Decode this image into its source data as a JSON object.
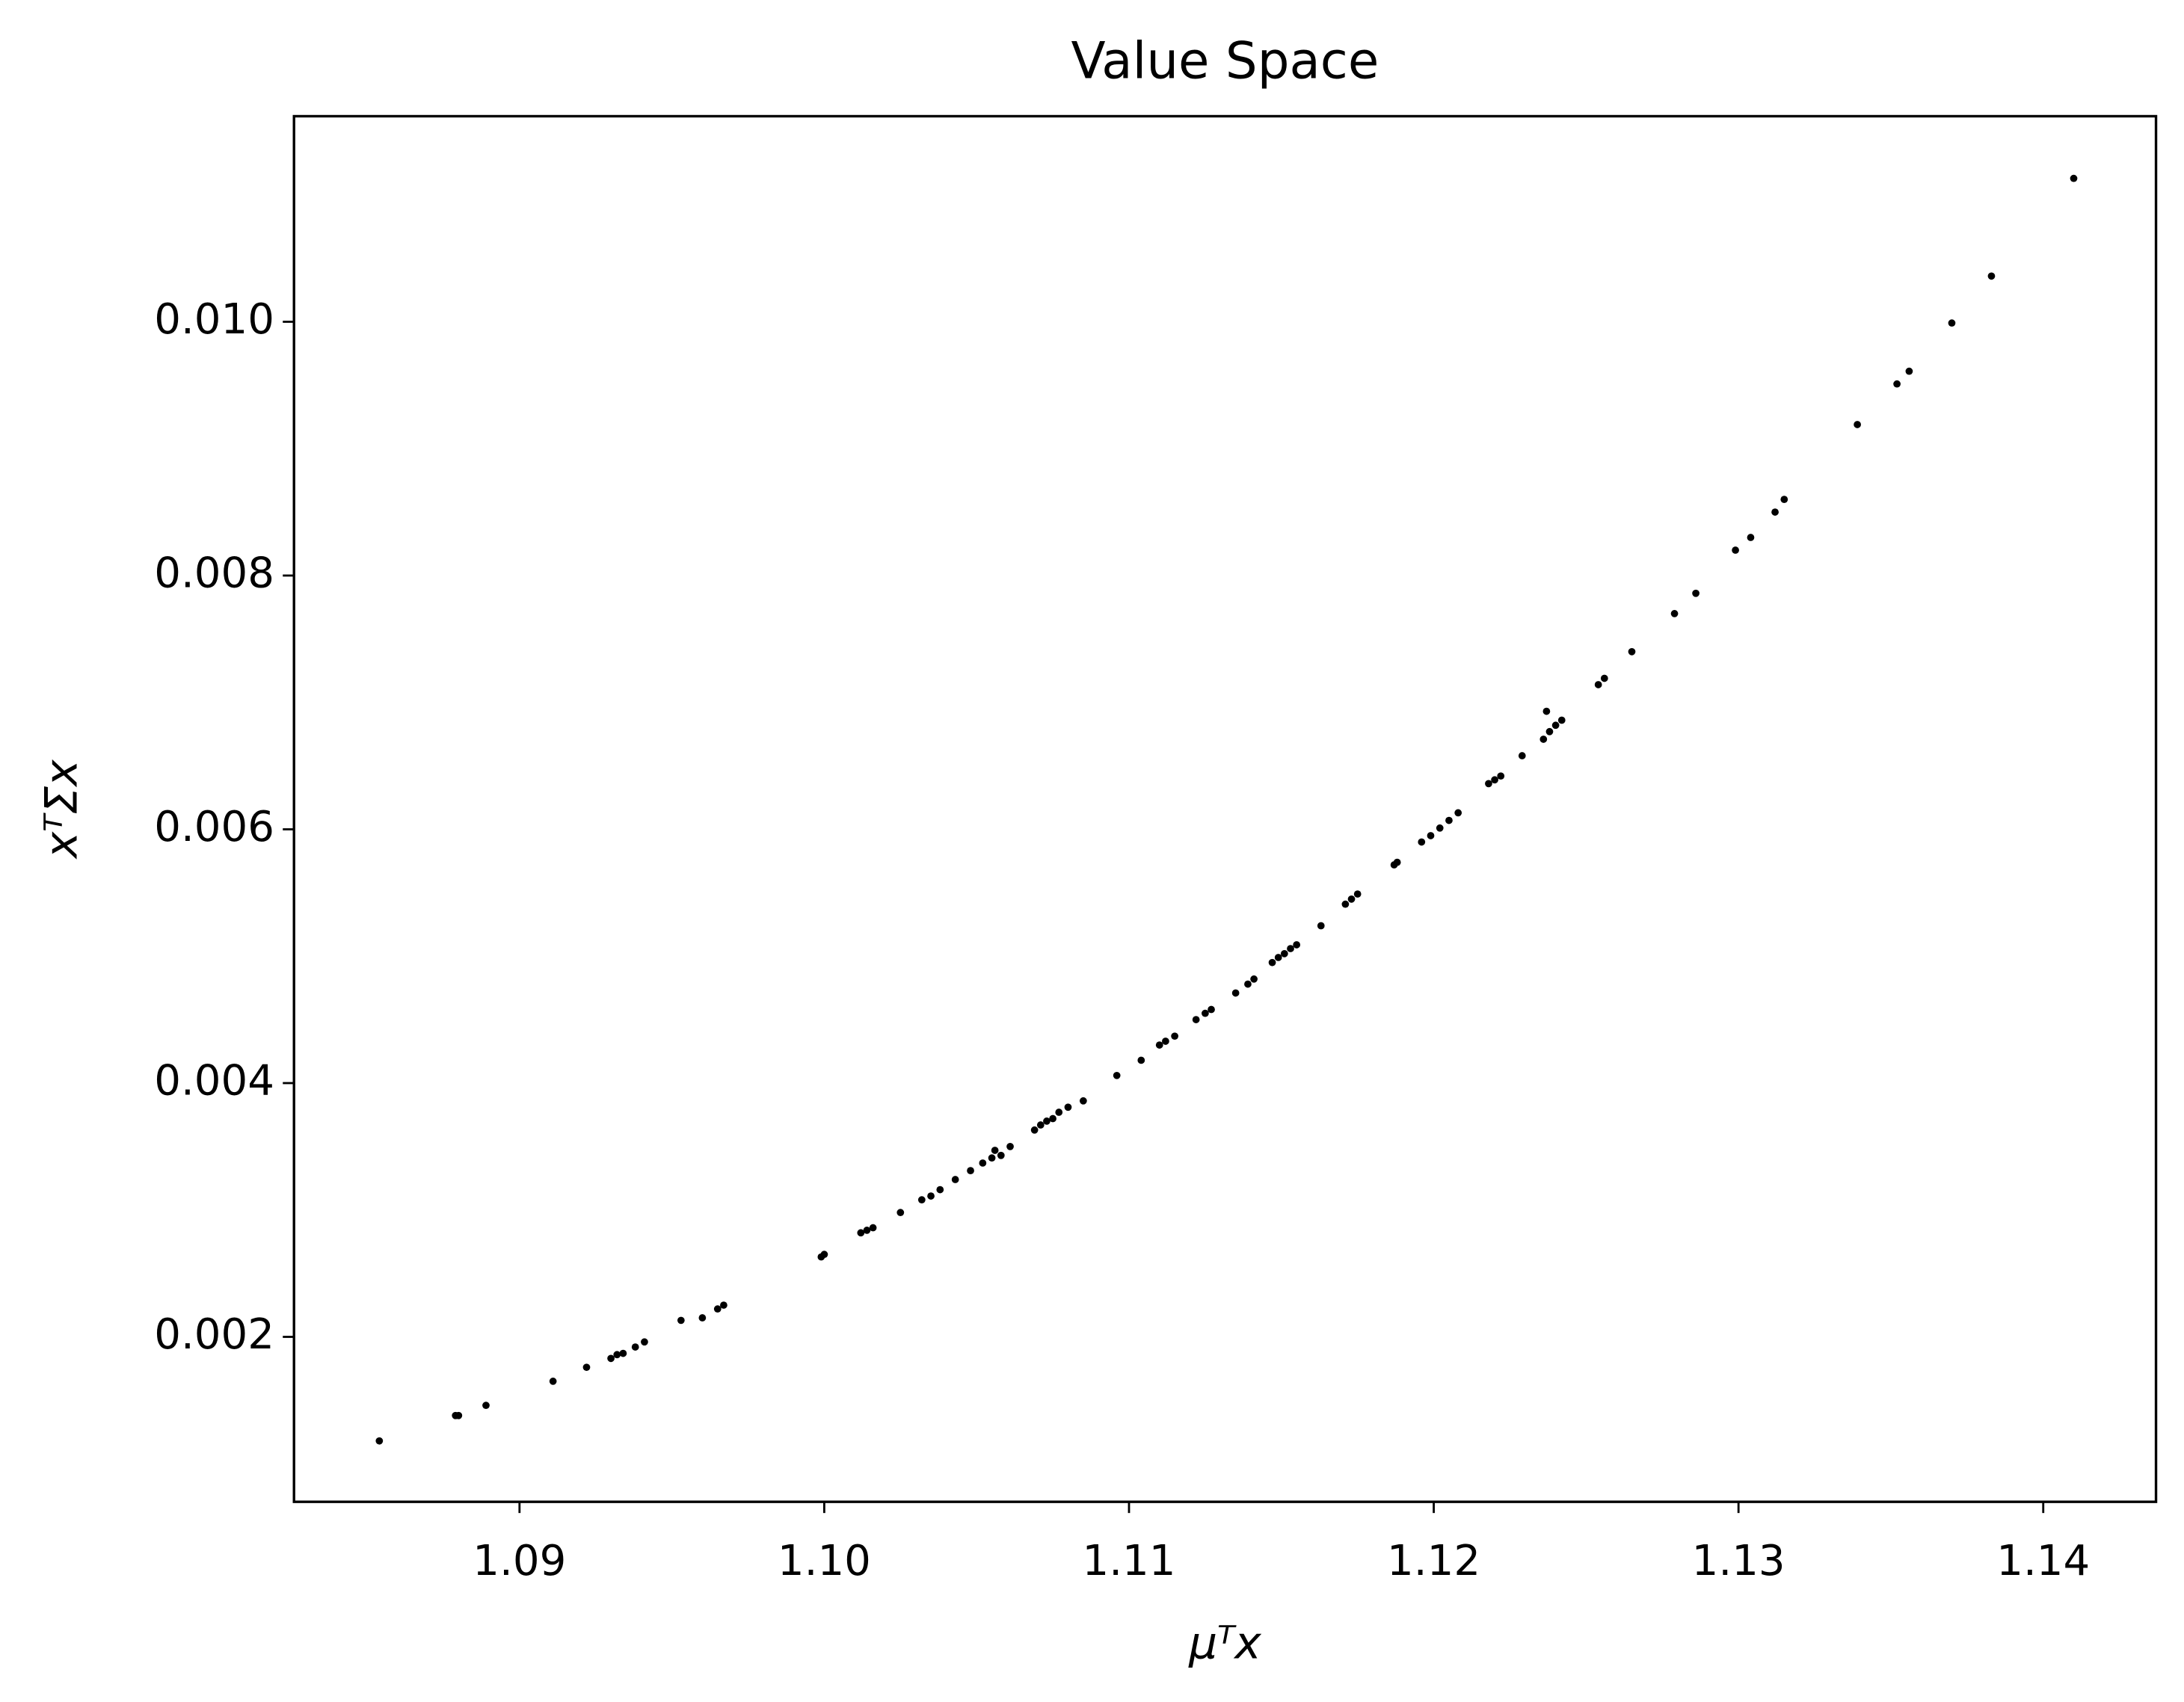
{
  "chart_data": {
    "type": "scatter",
    "title": "Value Space",
    "xlabel": "μᵀx",
    "ylabel": "xᵀΣx",
    "color": "#000000",
    "x": [
      1.0854,
      1.0879,
      1.088,
      1.0889,
      1.0911,
      1.0922,
      1.093,
      1.0932,
      1.0934,
      1.0938,
      1.0941,
      1.0953,
      1.096,
      1.0965,
      1.0967,
      1.0999,
      1.1,
      1.1012,
      1.1014,
      1.1016,
      1.1025,
      1.1032,
      1.1035,
      1.1038,
      1.1043,
      1.1048,
      1.1052,
      1.1055,
      1.1056,
      1.1058,
      1.1061,
      1.1069,
      1.1071,
      1.1073,
      1.1075,
      1.1077,
      1.108,
      1.1085,
      1.1096,
      1.1104,
      1.111,
      1.1112,
      1.1115,
      1.1122,
      1.1125,
      1.1127,
      1.1135,
      1.1139,
      1.1141,
      1.1147,
      1.1149,
      1.1151,
      1.1153,
      1.1155,
      1.1163,
      1.1171,
      1.1173,
      1.1175,
      1.1187,
      1.1188,
      1.1196,
      1.1199,
      1.1202,
      1.1205,
      1.1208,
      1.1218,
      1.122,
      1.1222,
      1.1229,
      1.1236,
      1.1237,
      1.1238,
      1.124,
      1.1242,
      1.1254,
      1.1256,
      1.1265,
      1.1279,
      1.1286,
      1.1299,
      1.1304,
      1.1312,
      1.1315,
      1.1339,
      1.1352,
      1.1356,
      1.137,
      1.1383,
      1.141
    ],
    "values": [
      0.00118,
      0.00138,
      0.00138,
      0.00146,
      0.00165,
      0.00176,
      0.00183,
      0.00186,
      0.00187,
      0.00192,
      0.00196,
      0.00213,
      0.00215,
      0.00222,
      0.00225,
      0.00263,
      0.00265,
      0.00282,
      0.00284,
      0.00286,
      0.00298,
      0.00308,
      0.00311,
      0.00316,
      0.00324,
      0.00331,
      0.00337,
      0.00341,
      0.00347,
      0.00343,
      0.0035,
      0.00363,
      0.00367,
      0.0037,
      0.00372,
      0.00377,
      0.00381,
      0.00386,
      0.00406,
      0.00418,
      0.0043,
      0.00433,
      0.00437,
      0.0045,
      0.00455,
      0.00458,
      0.00471,
      0.00478,
      0.00482,
      0.00495,
      0.00499,
      0.00502,
      0.00506,
      0.00509,
      0.00524,
      0.00541,
      0.00545,
      0.00549,
      0.00572,
      0.00574,
      0.0059,
      0.00595,
      0.00601,
      0.00607,
      0.00613,
      0.00636,
      0.00639,
      0.00642,
      0.00658,
      0.00671,
      0.00693,
      0.00677,
      0.00682,
      0.00686,
      0.00714,
      0.00719,
      0.0074,
      0.0077,
      0.00786,
      0.0082,
      0.0083,
      0.0085,
      0.0086,
      0.00919,
      0.00951,
      0.00961,
      0.00999,
      0.01036,
      0.01113
    ],
    "xlim": [
      1.0826,
      1.1437
    ],
    "xticks": [
      1.09,
      {
        "value": 1.1,
        "label": "1.10"
      },
      1.11,
      1.12,
      1.13,
      1.14
    ],
    "ylim": [
      0.0007,
      0.01162
    ],
    "yticks": [
      0.002,
      0.004,
      0.006,
      0.008,
      {
        "value": 0.01,
        "label": "0.010"
      }
    ],
    "grid": false
  }
}
